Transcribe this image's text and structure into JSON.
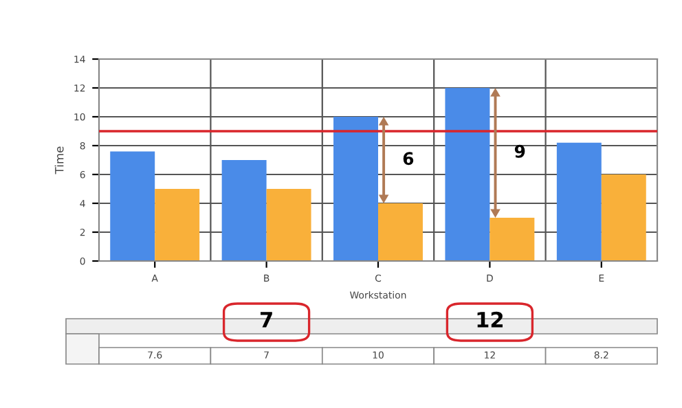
{
  "chart_data": {
    "type": "bar",
    "xlabel": "Workstation",
    "ylabel": "Time",
    "categories": [
      "A",
      "B",
      "C",
      "D",
      "E"
    ],
    "series": [
      {
        "color": "#4a8be8",
        "values": [
          7.6,
          7,
          10,
          12,
          8.2
        ],
        "value_labels": [
          "7.6",
          "7",
          "10",
          "12",
          "8.2"
        ]
      },
      {
        "color": "#f9b03a",
        "values": [
          5,
          5,
          4,
          3,
          6
        ]
      }
    ],
    "ylim": [
      0,
      14
    ],
    "yticks": [
      0,
      2,
      4,
      6,
      8,
      10,
      12,
      14
    ],
    "grid": true,
    "ref_lines": [
      {
        "axis": "y",
        "value": 9,
        "color": "#d9262c"
      }
    ],
    "annotations": [
      {
        "text": "6",
        "x": "C",
        "y": 7
      },
      {
        "text": "9",
        "x": "D",
        "y": 7.5
      },
      "7",
      "12"
    ]
  }
}
